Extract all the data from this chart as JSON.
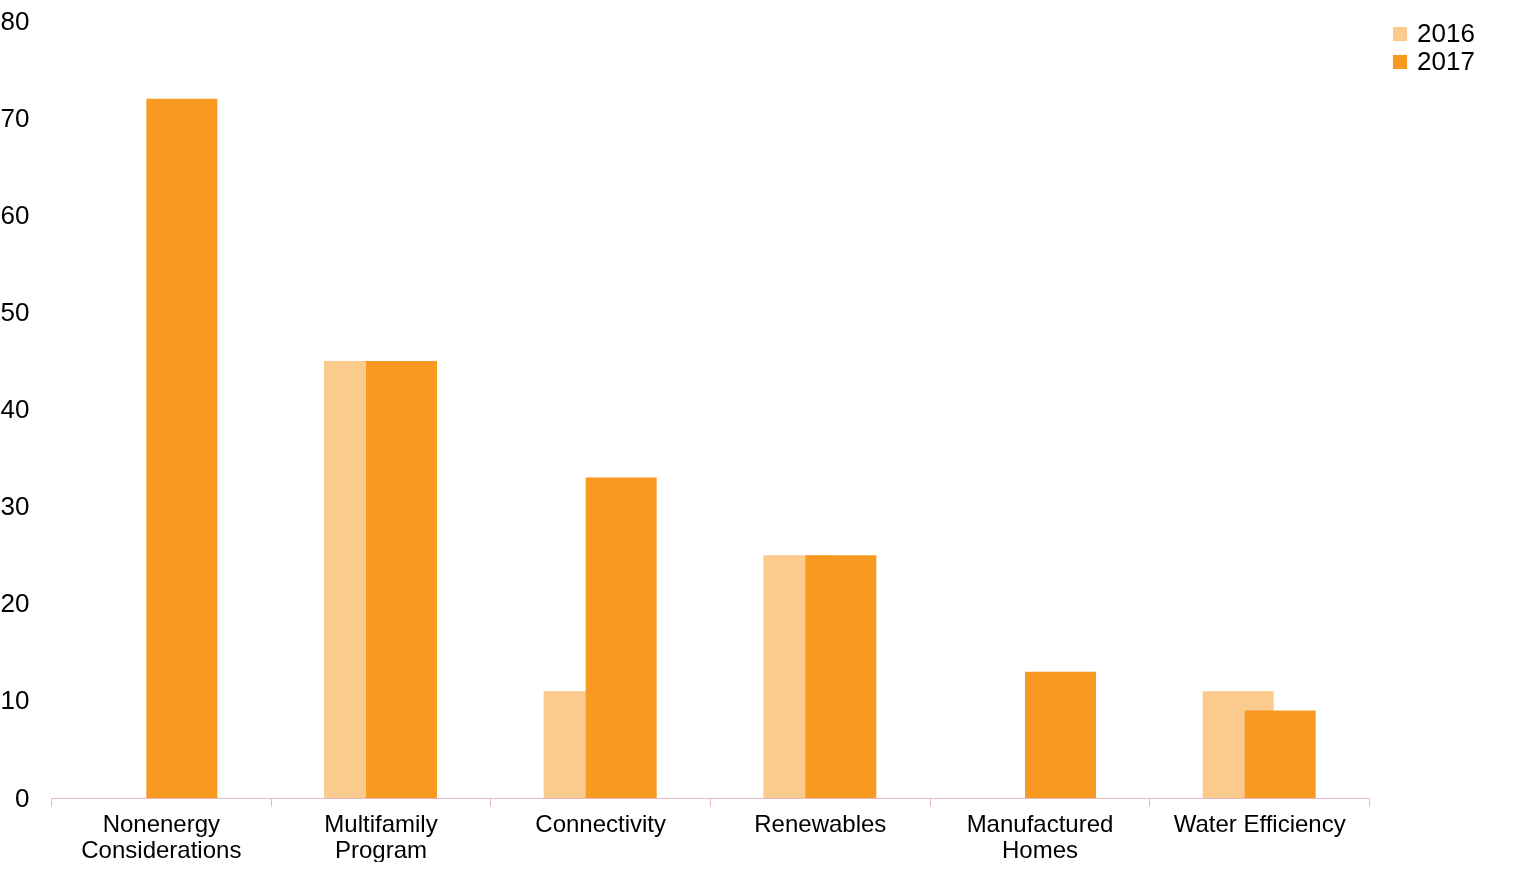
{
  "chart_data": {
    "type": "bar",
    "categories": [
      "Nonenergy Considerations",
      "Multifamily Program",
      "Connectivity",
      "Renewables",
      "Manufactured Homes",
      "Water Efficiency"
    ],
    "series": [
      {
        "name": "2016",
        "color": "#fbcb8e",
        "values": [
          null,
          45,
          11,
          25,
          null,
          11
        ]
      },
      {
        "name": "2017",
        "color": "#f89a22",
        "values": [
          72,
          45,
          33,
          25,
          13,
          9
        ]
      }
    ],
    "ylim": [
      0,
      80
    ],
    "yticks": [
      0,
      10,
      20,
      30,
      40,
      50,
      60,
      70,
      80
    ],
    "grid": false,
    "legend": "right"
  }
}
